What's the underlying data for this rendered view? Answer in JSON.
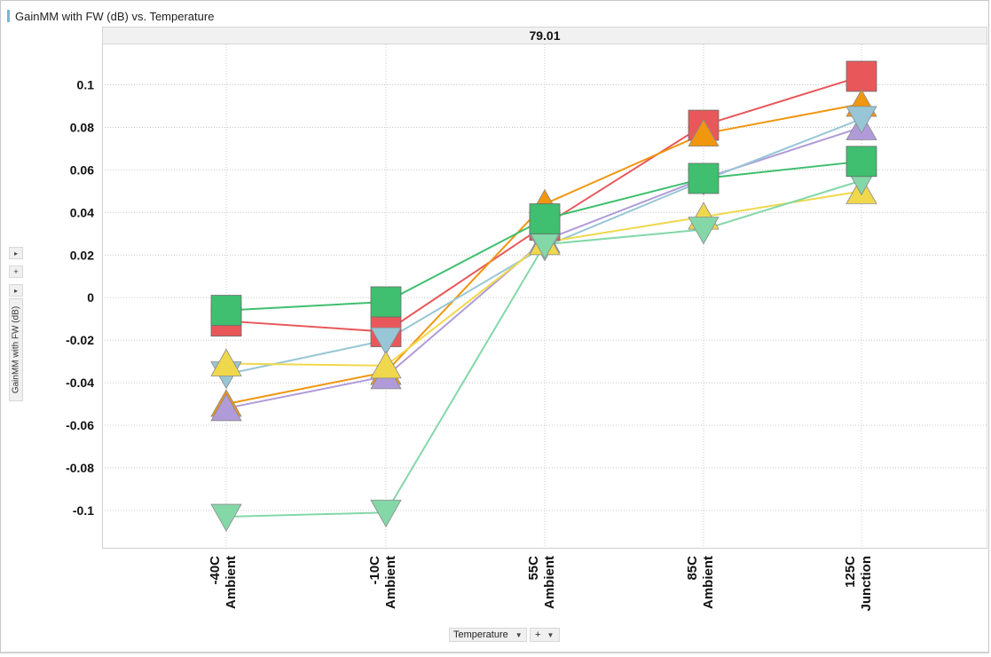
{
  "title": "GainMM with FW (dB) vs. Temperature",
  "panel_label": "79.01",
  "y_axis_control": {
    "label": "GainMM with FW (dB)",
    "expand_icon": "triangle-right-icon",
    "add_label": "+"
  },
  "x_axis_control": {
    "label": "Temperature",
    "dropdown_icon": "chevron-down-icon",
    "add_label": "+"
  },
  "colors": {
    "red": "#e8585a",
    "orange": "#f0960f",
    "green": "#3fbf6f",
    "lightgreen": "#84d8a8",
    "lightblue": "#98c6d6",
    "purple": "#b09bd8",
    "yellow": "#f0d84c",
    "accent": "#7fb5d5"
  },
  "chart_data": {
    "type": "line",
    "title": "GainMM with FW (dB) vs. Temperature",
    "panel": "79.01",
    "ylabel": "GainMM with FW (dB)",
    "xlabel": "Temperature",
    "categories": [
      [
        "-40C",
        "Ambient"
      ],
      [
        "-10C",
        "Ambient"
      ],
      [
        "55C",
        "Ambient"
      ],
      [
        "85C",
        "Ambient"
      ],
      [
        "125C",
        "Junction"
      ]
    ],
    "ylim": [
      -0.118,
      0.119
    ],
    "yticks": [
      "0.1",
      "0.08",
      "0.06",
      "0.04",
      "0.02",
      "0",
      "-0.02",
      "-0.04",
      "-0.06",
      "-0.08",
      "-0.1"
    ],
    "grid": true,
    "series": [
      {
        "color": "red",
        "marker": "square",
        "values": [
          -0.011,
          -0.016,
          0.034,
          0.081,
          0.104
        ]
      },
      {
        "color": "orange",
        "marker": "triangle-up",
        "values": [
          -0.05,
          -0.035,
          0.044,
          0.077,
          0.091
        ]
      },
      {
        "color": "purple",
        "marker": "triangle-up",
        "values": [
          -0.052,
          -0.037,
          0.027,
          0.056,
          0.08
        ]
      },
      {
        "color": "lightblue",
        "marker": "triangle-down",
        "values": [
          -0.036,
          -0.02,
          0.024,
          0.055,
          0.084
        ]
      },
      {
        "color": "yellow",
        "marker": "triangle-up",
        "values": [
          -0.031,
          -0.032,
          0.026,
          0.038,
          0.05
        ]
      },
      {
        "color": "lightgreen",
        "marker": "triangle-down",
        "values": [
          -0.103,
          -0.101,
          0.025,
          0.032,
          0.055
        ]
      },
      {
        "color": "green",
        "marker": "square",
        "values": [
          -0.006,
          -0.002,
          0.037,
          0.056,
          0.064
        ]
      }
    ]
  }
}
